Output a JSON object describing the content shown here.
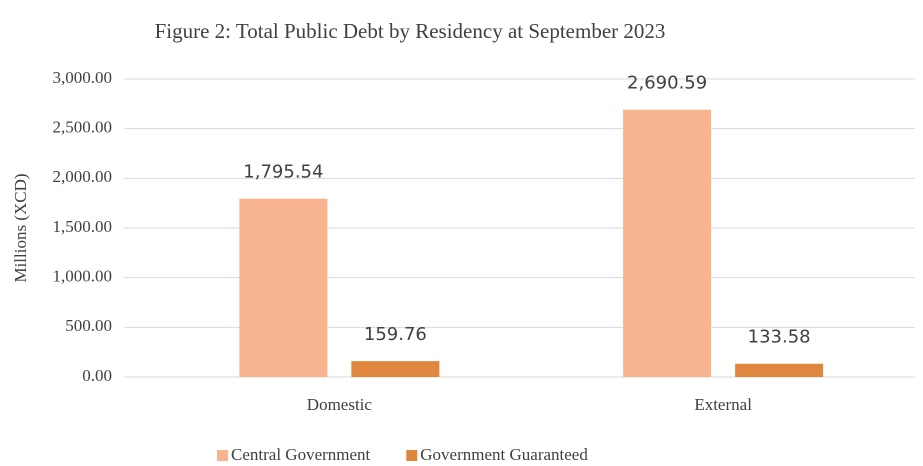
{
  "chart_data": {
    "type": "bar",
    "title": "Figure 2: Total Public Debt by Residency at September 2023",
    "y_label": "Millions (XCD)",
    "categories": [
      "Domestic",
      "External"
    ],
    "series": [
      {
        "name": "Central Government",
        "color": "#f8b48f",
        "values": [
          1795.54,
          2690.59
        ],
        "value_labels": [
          "1,795.54",
          "2,690.59"
        ]
      },
      {
        "name": "Government Guaranteed",
        "color": "#e0873f",
        "values": [
          159.76,
          133.58
        ],
        "value_labels": [
          "159.76",
          "133.58"
        ]
      }
    ],
    "ylim": [
      0,
      3000
    ],
    "yticks": [
      {
        "value": 0,
        "label": "0.00"
      },
      {
        "value": 500,
        "label": "500.00"
      },
      {
        "value": 1000,
        "label": "1,000.00"
      },
      {
        "value": 1500,
        "label": "1,500.00"
      },
      {
        "value": 2000,
        "label": "2,000.00"
      },
      {
        "value": 2500,
        "label": "2,500.00"
      },
      {
        "value": 3000,
        "label": "3,000.00"
      }
    ],
    "grid": true,
    "legend": "bottom"
  }
}
